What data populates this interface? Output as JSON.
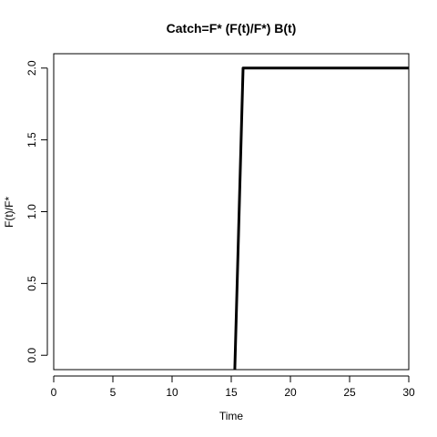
{
  "chart_data": {
    "type": "line",
    "title": "Catch=F* (F(t)/F*) B(t)",
    "xlabel": "Time",
    "ylabel": "F(t)/F*",
    "xlim": [
      0,
      30
    ],
    "ylim": [
      -0.1,
      2.1
    ],
    "xticks": [
      0,
      5,
      10,
      15,
      20,
      25,
      30
    ],
    "yticks": [
      0.0,
      0.5,
      1.0,
      1.5,
      2.0
    ],
    "ytick_labels": [
      "0.0",
      "0.5",
      "1.0",
      "1.5",
      "2.0"
    ],
    "grid": false,
    "series": [
      {
        "x": [
          15.3,
          16.0,
          30.0
        ],
        "y": [
          -0.1,
          2.0,
          2.0
        ],
        "color": "#000000"
      }
    ]
  }
}
